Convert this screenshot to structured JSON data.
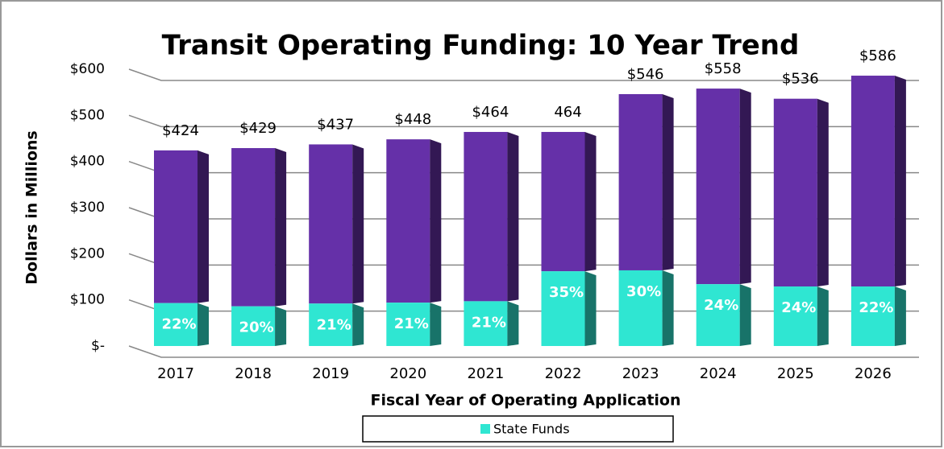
{
  "chart_data": {
    "type": "stacked-bar-3d",
    "title": "Transit Operating Funding: 10 Year Trend",
    "y_label": "Dollars in Millions",
    "x_label": "Fiscal Year of Operating Application",
    "categories": [
      "2017",
      "2018",
      "2019",
      "2020",
      "2021",
      "2022",
      "2023",
      "2024",
      "2025",
      "2026"
    ],
    "totals": [
      424,
      429,
      437,
      448,
      464,
      464,
      546,
      558,
      536,
      586
    ],
    "total_labels": [
      "$424",
      "$429",
      "$437",
      "$448",
      "$464",
      "464",
      "$546",
      "$558",
      "$536",
      "$586"
    ],
    "total_color": "#6530a8",
    "series": [
      {
        "name": "State Funds",
        "color": "#2fe6d2",
        "values": [
          93,
          86,
          92,
          94,
          97,
          162,
          164,
          134,
          129,
          129
        ],
        "value_labels": [
          "22%",
          "20%",
          "21%",
          "21%",
          "21%",
          "35%",
          "30%",
          "24%",
          "24%",
          "22%"
        ]
      }
    ],
    "ylim": [
      0,
      600
    ],
    "yticks": [
      {
        "value": 0,
        "label": "$-"
      },
      {
        "value": 100,
        "label": "$100"
      },
      {
        "value": 200,
        "label": "$200"
      },
      {
        "value": 300,
        "label": "$300"
      },
      {
        "value": 400,
        "label": "$400"
      },
      {
        "value": 500,
        "label": "$500"
      },
      {
        "value": 600,
        "label": "$600"
      }
    ],
    "grid": true
  }
}
